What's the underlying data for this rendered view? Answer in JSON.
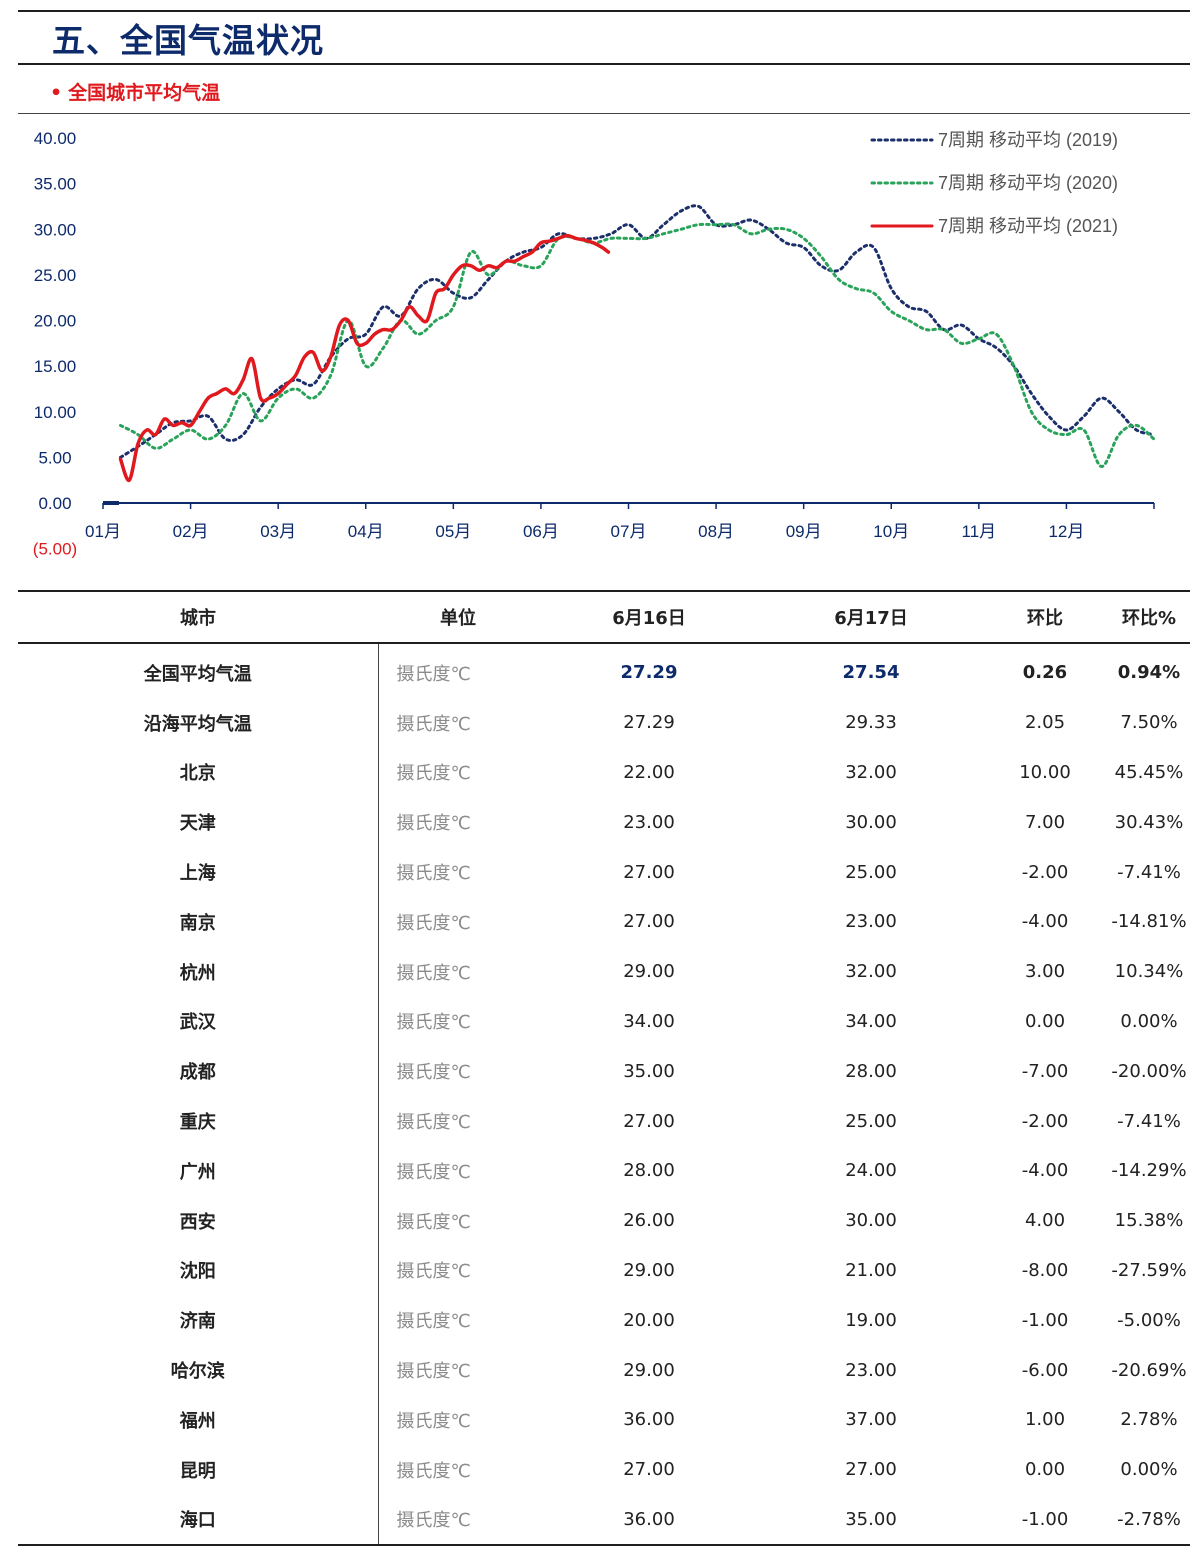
{
  "header": {
    "title": "五、全国气温状况",
    "subtitle": "全国城市平均气温",
    "bullet": "•"
  },
  "colors": {
    "title": "#0d2a6b",
    "accent_red": "#e0191e",
    "series_2019": "#1b2f6b",
    "series_2020": "#2aa35a",
    "series_2021": "#e0191e"
  },
  "chart_data": {
    "type": "line",
    "title": "",
    "xlabel": "",
    "ylabel": "",
    "ylim": [
      -5,
      40
    ],
    "y_ticks": [
      "40.00",
      "35.00",
      "30.00",
      "25.00",
      "20.00",
      "15.00",
      "10.00",
      "5.00",
      "0.00",
      "(5.00)"
    ],
    "x_ticks": [
      "01月",
      "02月",
      "03月",
      "04月",
      "05月",
      "06月",
      "07月",
      "08月",
      "09月",
      "10月",
      "11月",
      "12月"
    ],
    "x_unit": "month (1 = 01月 start, 13 = year end)",
    "legend_position": "top-right",
    "grid": false,
    "series": [
      {
        "name": "7周期 移动平均 (2019)",
        "style": "dotted",
        "color": "#1b2f6b",
        "x": [
          1.2,
          1.4,
          1.6,
          1.8,
          2.0,
          2.2,
          2.4,
          2.6,
          2.8,
          3.0,
          3.2,
          3.4,
          3.6,
          3.8,
          4.0,
          4.2,
          4.4,
          4.6,
          4.8,
          5.0,
          5.2,
          5.4,
          5.6,
          5.8,
          6.0,
          6.2,
          6.4,
          6.6,
          6.8,
          7.0,
          7.2,
          7.4,
          7.6,
          7.8,
          8.0,
          8.2,
          8.4,
          8.6,
          8.8,
          9.0,
          9.2,
          9.4,
          9.6,
          9.8,
          10.0,
          10.2,
          10.4,
          10.6,
          10.8,
          11.0,
          11.2,
          11.4,
          11.6,
          11.8,
          12.0,
          12.2,
          12.4,
          12.6,
          12.8,
          13.0
        ],
        "y": [
          5.0,
          6.2,
          7.5,
          8.8,
          9.0,
          9.5,
          7.0,
          7.5,
          10.5,
          12.5,
          13.5,
          13.0,
          16.0,
          18.0,
          18.5,
          21.5,
          20.5,
          23.5,
          24.5,
          23.0,
          22.5,
          24.5,
          26.5,
          27.5,
          28.0,
          29.5,
          29.0,
          29.0,
          29.5,
          30.5,
          29.0,
          30.5,
          32.0,
          32.5,
          30.5,
          30.5,
          31.0,
          30.0,
          28.5,
          28.0,
          26.0,
          25.5,
          27.5,
          28.0,
          23.5,
          21.5,
          21.0,
          19.0,
          19.5,
          18.0,
          17.0,
          15.0,
          12.0,
          9.5,
          8.0,
          9.5,
          11.5,
          10.0,
          8.0,
          7.5
        ]
      },
      {
        "name": "7周期 移动平均 (2020)",
        "style": "dotted",
        "color": "#2aa35a",
        "x": [
          1.2,
          1.4,
          1.6,
          1.8,
          2.0,
          2.2,
          2.4,
          2.6,
          2.8,
          3.0,
          3.2,
          3.4,
          3.6,
          3.8,
          4.0,
          4.2,
          4.4,
          4.6,
          4.8,
          5.0,
          5.2,
          5.4,
          5.6,
          5.8,
          6.0,
          6.2,
          6.4,
          6.6,
          6.8,
          7.0,
          7.2,
          7.4,
          7.6,
          7.8,
          8.0,
          8.2,
          8.4,
          8.6,
          8.8,
          9.0,
          9.2,
          9.4,
          9.6,
          9.8,
          10.0,
          10.2,
          10.4,
          10.6,
          10.8,
          11.0,
          11.2,
          11.4,
          11.6,
          11.8,
          12.0,
          12.2,
          12.4,
          12.6,
          12.8,
          13.0
        ],
        "y": [
          8.5,
          7.5,
          6.0,
          7.0,
          8.0,
          7.0,
          8.5,
          12.0,
          9.0,
          11.5,
          12.5,
          11.5,
          14.0,
          20.0,
          15.0,
          17.0,
          20.0,
          18.5,
          20.0,
          21.5,
          27.5,
          25.0,
          26.5,
          26.0,
          26.0,
          29.0,
          29.0,
          28.5,
          29.0,
          29.0,
          29.0,
          29.5,
          30.0,
          30.5,
          30.5,
          30.5,
          29.5,
          30.0,
          30.0,
          29.0,
          27.0,
          24.5,
          23.5,
          23.0,
          21.0,
          20.0,
          19.0,
          19.0,
          17.5,
          18.0,
          18.5,
          15.0,
          10.0,
          8.0,
          7.5,
          8.0,
          4.0,
          7.5,
          8.5,
          7.0
        ]
      },
      {
        "name": "7周期 移动平均 (2021)",
        "style": "solid",
        "color": "#e0191e",
        "x": [
          1.2,
          1.3,
          1.4,
          1.5,
          1.6,
          1.7,
          1.8,
          1.9,
          2.0,
          2.1,
          2.2,
          2.3,
          2.4,
          2.5,
          2.6,
          2.7,
          2.8,
          2.9,
          3.0,
          3.1,
          3.2,
          3.3,
          3.4,
          3.5,
          3.6,
          3.7,
          3.8,
          3.9,
          4.0,
          4.1,
          4.2,
          4.3,
          4.4,
          4.5,
          4.6,
          4.7,
          4.8,
          4.9,
          5.0,
          5.1,
          5.2,
          5.3,
          5.4,
          5.5,
          5.6,
          5.7,
          5.8,
          5.9,
          6.0,
          6.1,
          6.2,
          6.3,
          6.4,
          6.5,
          6.6,
          6.7,
          6.77
        ],
        "y": [
          4.8,
          2.5,
          6.5,
          8.0,
          7.5,
          9.2,
          8.5,
          8.8,
          8.5,
          10.0,
          11.5,
          12.0,
          12.5,
          12.0,
          13.5,
          15.8,
          11.5,
          11.5,
          12.0,
          13.0,
          14.0,
          16.0,
          16.5,
          14.5,
          16.0,
          19.5,
          20.0,
          17.5,
          17.5,
          18.5,
          19.0,
          19.0,
          20.0,
          21.5,
          20.5,
          20.0,
          23.0,
          23.5,
          25.0,
          26.0,
          26.0,
          25.5,
          26.0,
          25.8,
          26.5,
          26.5,
          27.0,
          27.5,
          28.5,
          28.7,
          29.0,
          29.3,
          29.0,
          28.8,
          28.5,
          28.0,
          27.5
        ]
      }
    ]
  },
  "table": {
    "headers": [
      "城市",
      "单位",
      "6月16日",
      "6月17日",
      "环比",
      "环比%"
    ],
    "rows": [
      [
        "全国平均气温",
        "摄氏度℃",
        "27.29",
        "27.54",
        "0.26",
        "0.94%"
      ],
      [
        "沿海平均气温",
        "摄氏度℃",
        "27.29",
        "29.33",
        "2.05",
        "7.50%"
      ],
      [
        "北京",
        "摄氏度℃",
        "22.00",
        "32.00",
        "10.00",
        "45.45%"
      ],
      [
        "天津",
        "摄氏度℃",
        "23.00",
        "30.00",
        "7.00",
        "30.43%"
      ],
      [
        "上海",
        "摄氏度℃",
        "27.00",
        "25.00",
        "-2.00",
        "-7.41%"
      ],
      [
        "南京",
        "摄氏度℃",
        "27.00",
        "23.00",
        "-4.00",
        "-14.81%"
      ],
      [
        "杭州",
        "摄氏度℃",
        "29.00",
        "32.00",
        "3.00",
        "10.34%"
      ],
      [
        "武汉",
        "摄氏度℃",
        "34.00",
        "34.00",
        "0.00",
        "0.00%"
      ],
      [
        "成都",
        "摄氏度℃",
        "35.00",
        "28.00",
        "-7.00",
        "-20.00%"
      ],
      [
        "重庆",
        "摄氏度℃",
        "27.00",
        "25.00",
        "-2.00",
        "-7.41%"
      ],
      [
        "广州",
        "摄氏度℃",
        "28.00",
        "24.00",
        "-4.00",
        "-14.29%"
      ],
      [
        "西安",
        "摄氏度℃",
        "26.00",
        "30.00",
        "4.00",
        "15.38%"
      ],
      [
        "沈阳",
        "摄氏度℃",
        "29.00",
        "21.00",
        "-8.00",
        "-27.59%"
      ],
      [
        "济南",
        "摄氏度℃",
        "20.00",
        "19.00",
        "-1.00",
        "-5.00%"
      ],
      [
        "哈尔滨",
        "摄氏度℃",
        "29.00",
        "23.00",
        "-6.00",
        "-20.69%"
      ],
      [
        "福州",
        "摄氏度℃",
        "36.00",
        "37.00",
        "1.00",
        "2.78%"
      ],
      [
        "昆明",
        "摄氏度℃",
        "27.00",
        "27.00",
        "0.00",
        "0.00%"
      ],
      [
        "海口",
        "摄氏度℃",
        "36.00",
        "35.00",
        "-1.00",
        "-2.78%"
      ]
    ]
  }
}
